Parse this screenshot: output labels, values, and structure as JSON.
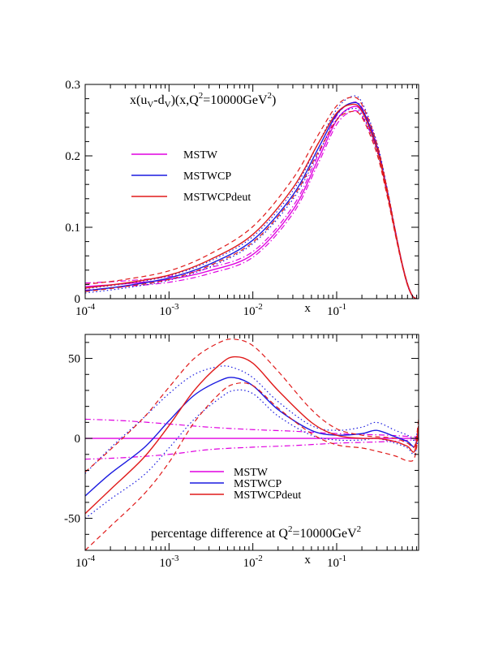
{
  "chart_data": [
    {
      "type": "line",
      "title": "x(u_V-d_V)(x,Q^2=10000GeV^2)",
      "title_parts": {
        "base": "x(u",
        "sub1": "V",
        "mid": "-d",
        "sub2": "V",
        "mid2": ")(x,Q",
        "sup": "2",
        "end": "=10000GeV",
        "sup2": "2",
        "close": ")"
      },
      "xlabel": "x",
      "ylabel": "",
      "xscale": "log",
      "xlim": [
        0.0001,
        0.95
      ],
      "ylim": [
        0,
        0.3
      ],
      "x_tick_labels": [
        {
          "base": "10",
          "exp": "-4",
          "x": 0.0001
        },
        {
          "base": "10",
          "exp": "-3",
          "x": 0.001
        },
        {
          "base": "10",
          "exp": "-2",
          "x": 0.01
        },
        {
          "base": "10",
          "exp": "-1",
          "x": 0.1
        }
      ],
      "y_tick_labels": [
        {
          "label": "0",
          "y": 0
        },
        {
          "label": "0.1",
          "y": 0.1
        },
        {
          "label": "0.2",
          "y": 0.2
        },
        {
          "label": "0.3",
          "y": 0.3
        }
      ],
      "legend": {
        "position": "upper-left",
        "entries": [
          {
            "name": "MSTW",
            "color": "#e000e0"
          },
          {
            "name": "MSTWCP",
            "color": "#1a1ae0"
          },
          {
            "name": "MSTWCPdeut",
            "color": "#e01a1a"
          }
        ]
      },
      "series": [
        {
          "name": "MSTW",
          "role": "central",
          "style": "solid",
          "color": "#e000e0",
          "x": [
            0.0001,
            0.0003,
            0.001,
            0.003,
            0.01,
            0.03,
            0.06,
            0.1,
            0.15,
            0.2,
            0.3,
            0.4,
            0.5,
            0.6,
            0.7,
            0.8,
            0.9,
            0.95
          ],
          "values": [
            0.017,
            0.021,
            0.027,
            0.039,
            0.062,
            0.124,
            0.195,
            0.25,
            0.268,
            0.262,
            0.213,
            0.15,
            0.094,
            0.05,
            0.02,
            0.004,
            0.0,
            0.0
          ]
        },
        {
          "name": "MSTW",
          "role": "upper",
          "style": "dashdot",
          "color": "#e000e0",
          "x": [
            0.0001,
            0.0003,
            0.001,
            0.003,
            0.01,
            0.03,
            0.06,
            0.1,
            0.15,
            0.2,
            0.3,
            0.4,
            0.5,
            0.6,
            0.7,
            0.8,
            0.9,
            0.95
          ],
          "values": [
            0.022,
            0.025,
            0.031,
            0.043,
            0.066,
            0.129,
            0.201,
            0.256,
            0.274,
            0.268,
            0.217,
            0.153,
            0.096,
            0.051,
            0.021,
            0.004,
            0.0,
            0.0
          ]
        },
        {
          "name": "MSTW",
          "role": "lower",
          "style": "dashdot",
          "color": "#e000e0",
          "x": [
            0.0001,
            0.0003,
            0.001,
            0.003,
            0.01,
            0.03,
            0.06,
            0.1,
            0.15,
            0.2,
            0.3,
            0.4,
            0.5,
            0.6,
            0.7,
            0.8,
            0.9,
            0.95
          ],
          "values": [
            0.012,
            0.017,
            0.023,
            0.035,
            0.058,
            0.119,
            0.189,
            0.244,
            0.262,
            0.256,
            0.209,
            0.147,
            0.092,
            0.049,
            0.019,
            0.004,
            0.0,
            0.0
          ]
        },
        {
          "name": "MSTWCP",
          "role": "central",
          "style": "solid",
          "color": "#1a1ae0",
          "x": [
            0.0001,
            0.0003,
            0.001,
            0.003,
            0.01,
            0.03,
            0.06,
            0.1,
            0.15,
            0.2,
            0.3,
            0.4,
            0.5,
            0.6,
            0.7,
            0.8,
            0.9,
            0.95
          ],
          "values": [
            0.011,
            0.018,
            0.029,
            0.048,
            0.082,
            0.145,
            0.21,
            0.258,
            0.274,
            0.266,
            0.214,
            0.151,
            0.094,
            0.05,
            0.02,
            0.004,
            0.0,
            0.0
          ]
        },
        {
          "name": "MSTWCP",
          "role": "upper",
          "style": "dotted",
          "color": "#1a1ae0",
          "x": [
            0.0001,
            0.0003,
            0.001,
            0.003,
            0.01,
            0.03,
            0.06,
            0.1,
            0.15,
            0.2,
            0.3,
            0.4,
            0.5,
            0.6,
            0.7,
            0.8,
            0.9,
            0.95
          ],
          "values": [
            0.014,
            0.021,
            0.032,
            0.052,
            0.087,
            0.151,
            0.217,
            0.265,
            0.283,
            0.275,
            0.22,
            0.155,
            0.096,
            0.051,
            0.021,
            0.004,
            0.0,
            0.0
          ]
        },
        {
          "name": "MSTWCP",
          "role": "lower",
          "style": "dotted",
          "color": "#1a1ae0",
          "x": [
            0.0001,
            0.0003,
            0.001,
            0.003,
            0.01,
            0.03,
            0.06,
            0.1,
            0.15,
            0.2,
            0.3,
            0.4,
            0.5,
            0.6,
            0.7,
            0.8,
            0.9,
            0.95
          ],
          "values": [
            0.008,
            0.015,
            0.026,
            0.044,
            0.077,
            0.139,
            0.203,
            0.251,
            0.266,
            0.258,
            0.208,
            0.147,
            0.092,
            0.049,
            0.019,
            0.004,
            0.0,
            0.0
          ]
        },
        {
          "name": "MSTWCPdeut",
          "role": "central",
          "style": "solid",
          "color": "#e01a1a",
          "x": [
            0.0001,
            0.0003,
            0.001,
            0.003,
            0.01,
            0.03,
            0.06,
            0.1,
            0.15,
            0.2,
            0.3,
            0.4,
            0.5,
            0.6,
            0.7,
            0.8,
            0.9,
            0.95
          ],
          "values": [
            0.015,
            0.022,
            0.033,
            0.054,
            0.09,
            0.155,
            0.217,
            0.26,
            0.272,
            0.263,
            0.211,
            0.149,
            0.093,
            0.05,
            0.02,
            0.004,
            0.0,
            0.0
          ]
        },
        {
          "name": "MSTWCPdeut",
          "role": "upper",
          "style": "dashed",
          "color": "#e01a1a",
          "x": [
            0.0001,
            0.0003,
            0.001,
            0.003,
            0.01,
            0.03,
            0.06,
            0.1,
            0.15,
            0.2,
            0.3,
            0.4,
            0.5,
            0.6,
            0.7,
            0.8,
            0.9,
            0.95
          ],
          "values": [
            0.02,
            0.027,
            0.039,
            0.062,
            0.101,
            0.168,
            0.229,
            0.27,
            0.282,
            0.272,
            0.218,
            0.154,
            0.096,
            0.051,
            0.021,
            0.004,
            0.0,
            0.0
          ]
        },
        {
          "name": "MSTWCPdeut",
          "role": "lower",
          "style": "dashed",
          "color": "#e01a1a",
          "x": [
            0.0001,
            0.0003,
            0.001,
            0.003,
            0.01,
            0.03,
            0.06,
            0.1,
            0.15,
            0.2,
            0.3,
            0.4,
            0.5,
            0.6,
            0.7,
            0.8,
            0.9,
            0.95
          ],
          "values": [
            0.01,
            0.017,
            0.027,
            0.046,
            0.079,
            0.142,
            0.205,
            0.25,
            0.262,
            0.254,
            0.204,
            0.144,
            0.09,
            0.048,
            0.019,
            0.004,
            0.0,
            0.0
          ]
        }
      ]
    },
    {
      "type": "line",
      "title": "percentage difference at Q^2=10000GeV^2",
      "title_parts": {
        "base": "percentage difference at Q",
        "sup": "2",
        "end": "=10000GeV",
        "sup2": "2"
      },
      "xlabel": "x",
      "ylabel": "",
      "xscale": "log",
      "xlim": [
        0.0001,
        0.95
      ],
      "ylim": [
        -70,
        65
      ],
      "x_tick_labels": [
        {
          "base": "10",
          "exp": "-4",
          "x": 0.0001
        },
        {
          "base": "10",
          "exp": "-3",
          "x": 0.001
        },
        {
          "base": "10",
          "exp": "-2",
          "x": 0.01
        },
        {
          "base": "10",
          "exp": "-1",
          "x": 0.1
        }
      ],
      "y_tick_labels": [
        {
          "label": "50",
          "y": 50
        },
        {
          "label": "0",
          "y": 0
        },
        {
          "label": "-50",
          "y": -50
        }
      ],
      "legend": {
        "position": "lower-center",
        "entries": [
          {
            "name": "MSTW",
            "color": "#e000e0"
          },
          {
            "name": "MSTWCP",
            "color": "#1a1ae0"
          },
          {
            "name": "MSTWCPdeut",
            "color": "#e01a1a"
          }
        ]
      },
      "series": [
        {
          "name": "MSTW",
          "role": "central",
          "style": "solid",
          "color": "#e000e0",
          "x": [
            0.0001,
            0.95
          ],
          "values": [
            0,
            0
          ]
        },
        {
          "name": "MSTW",
          "role": "upper",
          "style": "dashdot",
          "color": "#e000e0",
          "x": [
            0.0001,
            0.0003,
            0.001,
            0.003,
            0.01,
            0.03,
            0.1,
            0.2,
            0.4,
            0.6,
            0.8,
            0.9,
            0.95
          ],
          "values": [
            12,
            11,
            9,
            7,
            5.5,
            4.5,
            3,
            2.5,
            2,
            1.5,
            1,
            1,
            1
          ]
        },
        {
          "name": "MSTW",
          "role": "lower",
          "style": "dashdot",
          "color": "#e000e0",
          "x": [
            0.0001,
            0.0003,
            0.001,
            0.003,
            0.01,
            0.03,
            0.1,
            0.2,
            0.4,
            0.6,
            0.8,
            0.9,
            0.95
          ],
          "values": [
            -13,
            -12,
            -10,
            -7,
            -5.5,
            -4.5,
            -3,
            -2.5,
            -2,
            -1.5,
            -1,
            -1,
            -1
          ]
        },
        {
          "name": "MSTWCP",
          "role": "central",
          "style": "solid",
          "color": "#1a1ae0",
          "x": [
            0.0001,
            0.0002,
            0.0005,
            0.001,
            0.002,
            0.004,
            0.006,
            0.01,
            0.02,
            0.05,
            0.1,
            0.2,
            0.3,
            0.5,
            0.7,
            0.85,
            0.95
          ],
          "values": [
            -36,
            -22,
            -6,
            11,
            27,
            36,
            38,
            33,
            18,
            5,
            2,
            3,
            5,
            1,
            -2,
            -5,
            5
          ]
        },
        {
          "name": "MSTWCP",
          "role": "upper",
          "style": "dotted",
          "color": "#1a1ae0",
          "x": [
            0.0001,
            0.0002,
            0.0005,
            0.001,
            0.002,
            0.004,
            0.006,
            0.01,
            0.02,
            0.05,
            0.1,
            0.2,
            0.3,
            0.5,
            0.7,
            0.85,
            0.95
          ],
          "values": [
            -22,
            -6,
            13,
            28,
            40,
            45,
            44,
            38,
            23,
            8,
            5,
            7,
            10,
            5,
            2,
            -1,
            8
          ]
        },
        {
          "name": "MSTWCP",
          "role": "lower",
          "style": "dotted",
          "color": "#1a1ae0",
          "x": [
            0.0001,
            0.0002,
            0.0005,
            0.001,
            0.002,
            0.004,
            0.006,
            0.01,
            0.02,
            0.05,
            0.1,
            0.2,
            0.3,
            0.5,
            0.7,
            0.85,
            0.95
          ],
          "values": [
            -50,
            -38,
            -23,
            -6,
            12,
            25,
            30,
            28,
            14,
            2,
            -1,
            -1,
            0,
            -3,
            -6,
            -10,
            2
          ]
        },
        {
          "name": "MSTWCPdeut",
          "role": "central",
          "style": "solid",
          "color": "#e01a1a",
          "x": [
            0.0001,
            0.0002,
            0.0005,
            0.001,
            0.002,
            0.004,
            0.006,
            0.01,
            0.02,
            0.05,
            0.1,
            0.2,
            0.3,
            0.5,
            0.7,
            0.85,
            0.95
          ],
          "values": [
            -47,
            -32,
            -12,
            8,
            30,
            46,
            51,
            47,
            30,
            10,
            2,
            0,
            0,
            -2,
            -5,
            -8,
            8
          ]
        },
        {
          "name": "MSTWCPdeut",
          "role": "upper",
          "style": "dashed",
          "color": "#e01a1a",
          "x": [
            0.0001,
            0.0002,
            0.0005,
            0.001,
            0.002,
            0.004,
            0.006,
            0.01,
            0.02,
            0.05,
            0.1,
            0.2,
            0.3,
            0.5,
            0.7,
            0.85,
            0.95
          ],
          "values": [
            -21,
            -7,
            13,
            32,
            50,
            60,
            62,
            58,
            42,
            18,
            6,
            2,
            1,
            0,
            -3,
            -5,
            12
          ]
        },
        {
          "name": "MSTWCPdeut",
          "role": "lower",
          "style": "dashed",
          "color": "#e01a1a",
          "x": [
            0.0001,
            0.0002,
            0.0005,
            0.001,
            0.002,
            0.004,
            0.006,
            0.01,
            0.02,
            0.05,
            0.1,
            0.2,
            0.3,
            0.5,
            0.7,
            0.85,
            0.95
          ],
          "values": [
            -70,
            -55,
            -35,
            -15,
            10,
            28,
            34,
            33,
            19,
            3,
            -4,
            -6,
            -8,
            -11,
            -14,
            -12,
            5
          ]
        }
      ]
    }
  ]
}
